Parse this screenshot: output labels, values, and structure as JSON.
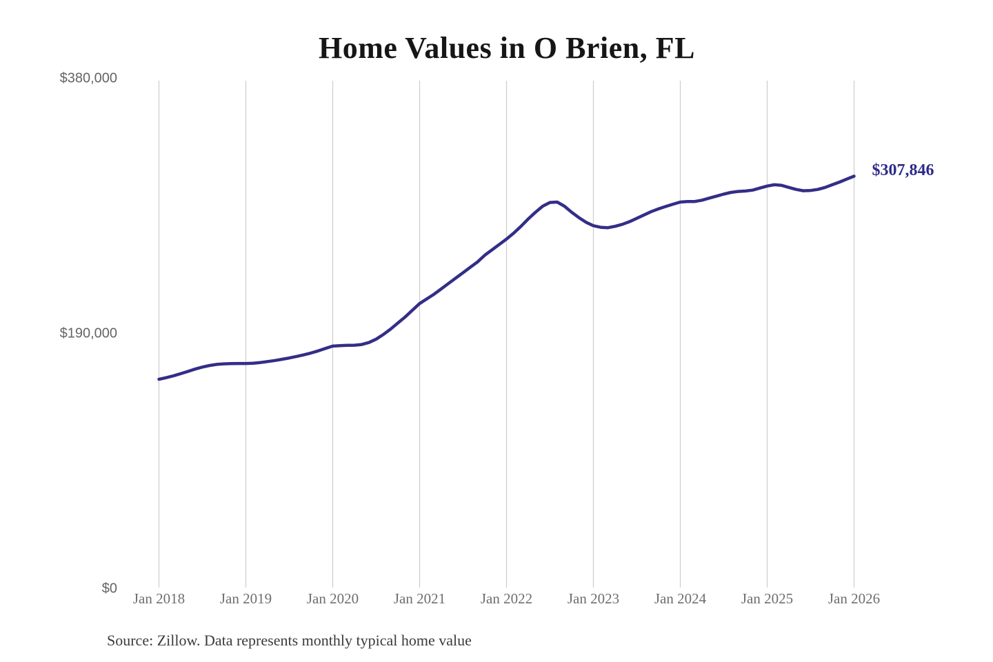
{
  "title": "Home Values in O Brien, FL",
  "source_note": "Source: Zillow. Data represents monthly typical home value",
  "colors": {
    "line": "#332e87",
    "end_label": "#2d2a8a",
    "gridline": "#cccccc",
    "y_tick_text": "#646464",
    "x_tick_text": "#6e6e6e",
    "title_text": "#161616",
    "source_text": "#3a3a3a",
    "background": "#ffffff"
  },
  "chart_data": {
    "type": "line",
    "title": "Home Values in O Brien, FL",
    "xlabel": "",
    "ylabel": "",
    "ylim": [
      0,
      380000
    ],
    "y_ticks": [
      380000,
      190000,
      0
    ],
    "y_tick_labels": [
      "$380,000",
      "$190,000",
      "$0"
    ],
    "x_tick_labels": [
      "Jan 2018",
      "Jan 2019",
      "Jan 2020",
      "Jan 2021",
      "Jan 2022",
      "Jan 2023",
      "Jan 2024",
      "Jan 2025",
      "Jan 2026"
    ],
    "grid": "vertical-only",
    "legend": "none",
    "end_label": "$307,846",
    "end_value": 307846,
    "x_monthly_start": "2018-01",
    "x_monthly_end": "2026-01",
    "series": [
      {
        "name": "typical-home-value",
        "values": [
          156600,
          157800,
          159200,
          160800,
          162500,
          164200,
          165700,
          166900,
          167700,
          168100,
          168300,
          168400,
          168400,
          168600,
          169100,
          169800,
          170600,
          171500,
          172500,
          173600,
          174800,
          176200,
          177800,
          179600,
          181300,
          181700,
          181900,
          182000,
          182500,
          184000,
          186500,
          190000,
          194000,
          198500,
          203000,
          208000,
          213000,
          216500,
          220000,
          224000,
          228000,
          232000,
          236000,
          240000,
          244000,
          249000,
          253000,
          257000,
          261000,
          265500,
          270500,
          276000,
          281000,
          285500,
          288300,
          288600,
          285500,
          281000,
          277000,
          273500,
          271000,
          269800,
          269500,
          270500,
          272000,
          274000,
          276500,
          279000,
          281500,
          283500,
          285300,
          287000,
          288600,
          289000,
          289000,
          290000,
          291500,
          293000,
          294500,
          295800,
          296500,
          296800,
          297500,
          299000,
          300500,
          301500,
          301000,
          299500,
          298000,
          297000,
          297200,
          298000,
          299500,
          301500,
          303500,
          305700,
          307846
        ]
      }
    ]
  }
}
